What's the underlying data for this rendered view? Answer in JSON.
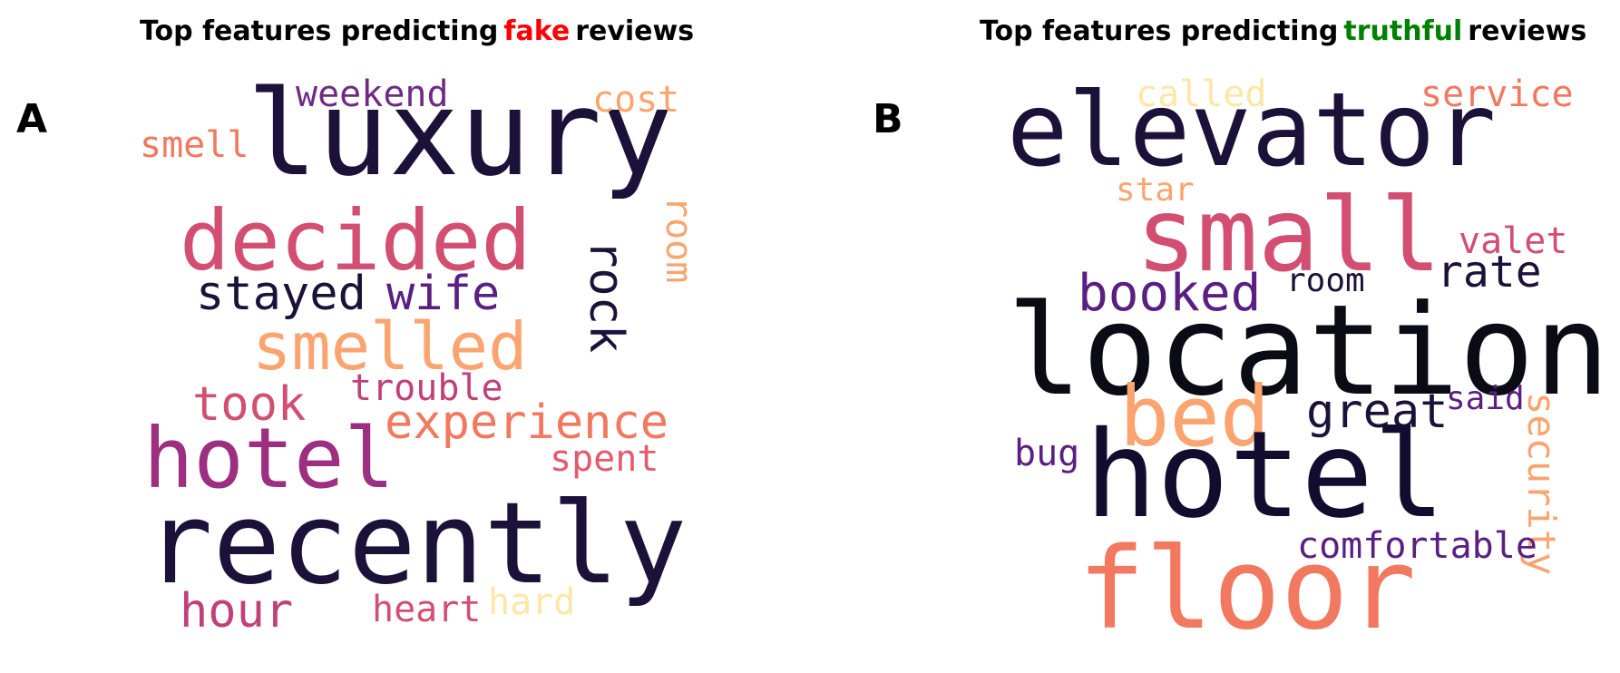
{
  "panel_a": {
    "label": "A",
    "title_prefix": "Top features predicting",
    "title_highlight": "fake",
    "title_suffix": "reviews",
    "highlight_color": "#ff0000",
    "words": {
      "luxury": "luxury",
      "weekend": "weekend",
      "cost": "cost",
      "smell": "smell",
      "decided": "decided",
      "room": "room",
      "stayed": "stayed",
      "wife": "wife",
      "rock": "rock",
      "smelled": "smelled",
      "trouble": "trouble",
      "took": "took",
      "experience": "experience",
      "hotel": "hotel",
      "spent": "spent",
      "recently": "recently",
      "hour": "hour",
      "heart": "heart",
      "hard": "hard"
    }
  },
  "panel_b": {
    "label": "B",
    "title_prefix": "Top features predicting",
    "title_highlight": "truthful",
    "title_suffix": "reviews",
    "highlight_color": "#008000",
    "words": {
      "called": "called",
      "service": "service",
      "elevator": "elevator",
      "star": "star",
      "small": "small",
      "valet": "valet",
      "booked": "booked",
      "room": "room",
      "rate": "rate",
      "location": "location",
      "bed": "bed",
      "great": "great",
      "said": "said",
      "security": "security",
      "bug": "bug",
      "hotel": "hotel",
      "comfortable": "comfortable",
      "floor": "floor"
    }
  },
  "palette": {
    "dark_navy": "#1c1239",
    "deep_navy": "#120d2e",
    "purple": "#5a1f82",
    "magenta": "#9c2f7f",
    "rose": "#d24f71",
    "coral": "#f2785f",
    "peach": "#fba46f",
    "light_yellow": "#fde7a6"
  }
}
